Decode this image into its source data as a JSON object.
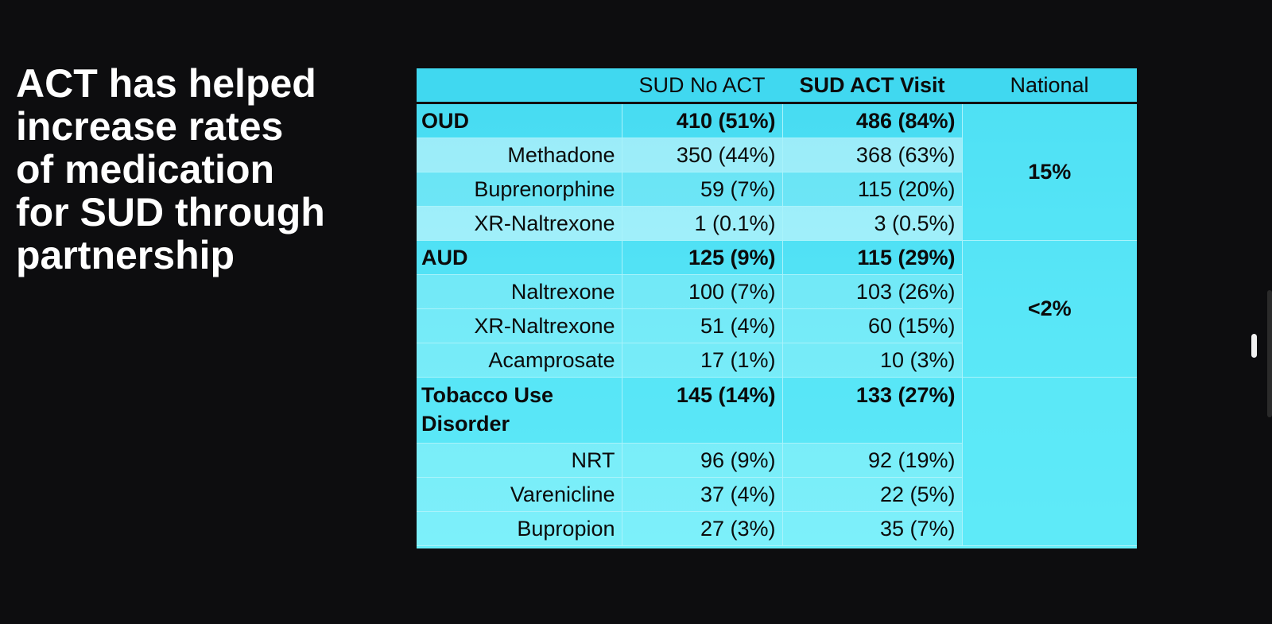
{
  "slide": {
    "headline_lines": [
      "ACT has helped",
      "increase rates",
      "of medication",
      "for SUD through",
      "partnership"
    ]
  },
  "table": {
    "headers": {
      "col1": "",
      "col2": "SUD No ACT",
      "col3": "SUD ACT Visit",
      "col4": "National"
    },
    "oud": {
      "label": "OUD",
      "no_act": "410 (51%)",
      "act_visit": "486 (84%)",
      "national": "15%",
      "rows": [
        {
          "label": "Methadone",
          "no_act": "350 (44%)",
          "act_visit": "368 (63%)"
        },
        {
          "label": "Buprenorphine",
          "no_act": "59 (7%)",
          "act_visit": "115 (20%)"
        },
        {
          "label": "XR-Naltrexone",
          "no_act": "1 (0.1%)",
          "act_visit": "3 (0.5%)"
        }
      ]
    },
    "aud": {
      "label": "AUD",
      "no_act": "125 (9%)",
      "act_visit": "115 (29%)",
      "national": "<2%",
      "rows": [
        {
          "label": "Naltrexone",
          "no_act": "100 (7%)",
          "act_visit": "103 (26%)"
        },
        {
          "label": "XR-Naltrexone",
          "no_act": "51 (4%)",
          "act_visit": "60 (15%)"
        },
        {
          "label": "Acamprosate",
          "no_act": "17 (1%)",
          "act_visit": "10 (3%)"
        }
      ]
    },
    "tud": {
      "label": "Tobacco Use Disorder",
      "no_act": "145 (14%)",
      "act_visit": "133 (27%)",
      "national": "",
      "rows": [
        {
          "label": "NRT",
          "no_act": "96 (9%)",
          "act_visit": "92 (19%)"
        },
        {
          "label": "Varenicline",
          "no_act": "37 (4%)",
          "act_visit": "22 (5%)"
        },
        {
          "label": "Bupropion",
          "no_act": "27 (3%)",
          "act_visit": "35 (7%)"
        }
      ]
    }
  },
  "colors": {
    "background": "#0d0d0f",
    "headline": "#ffffff",
    "table_fill": "#4fe0f3",
    "header_rule": "#111111"
  }
}
